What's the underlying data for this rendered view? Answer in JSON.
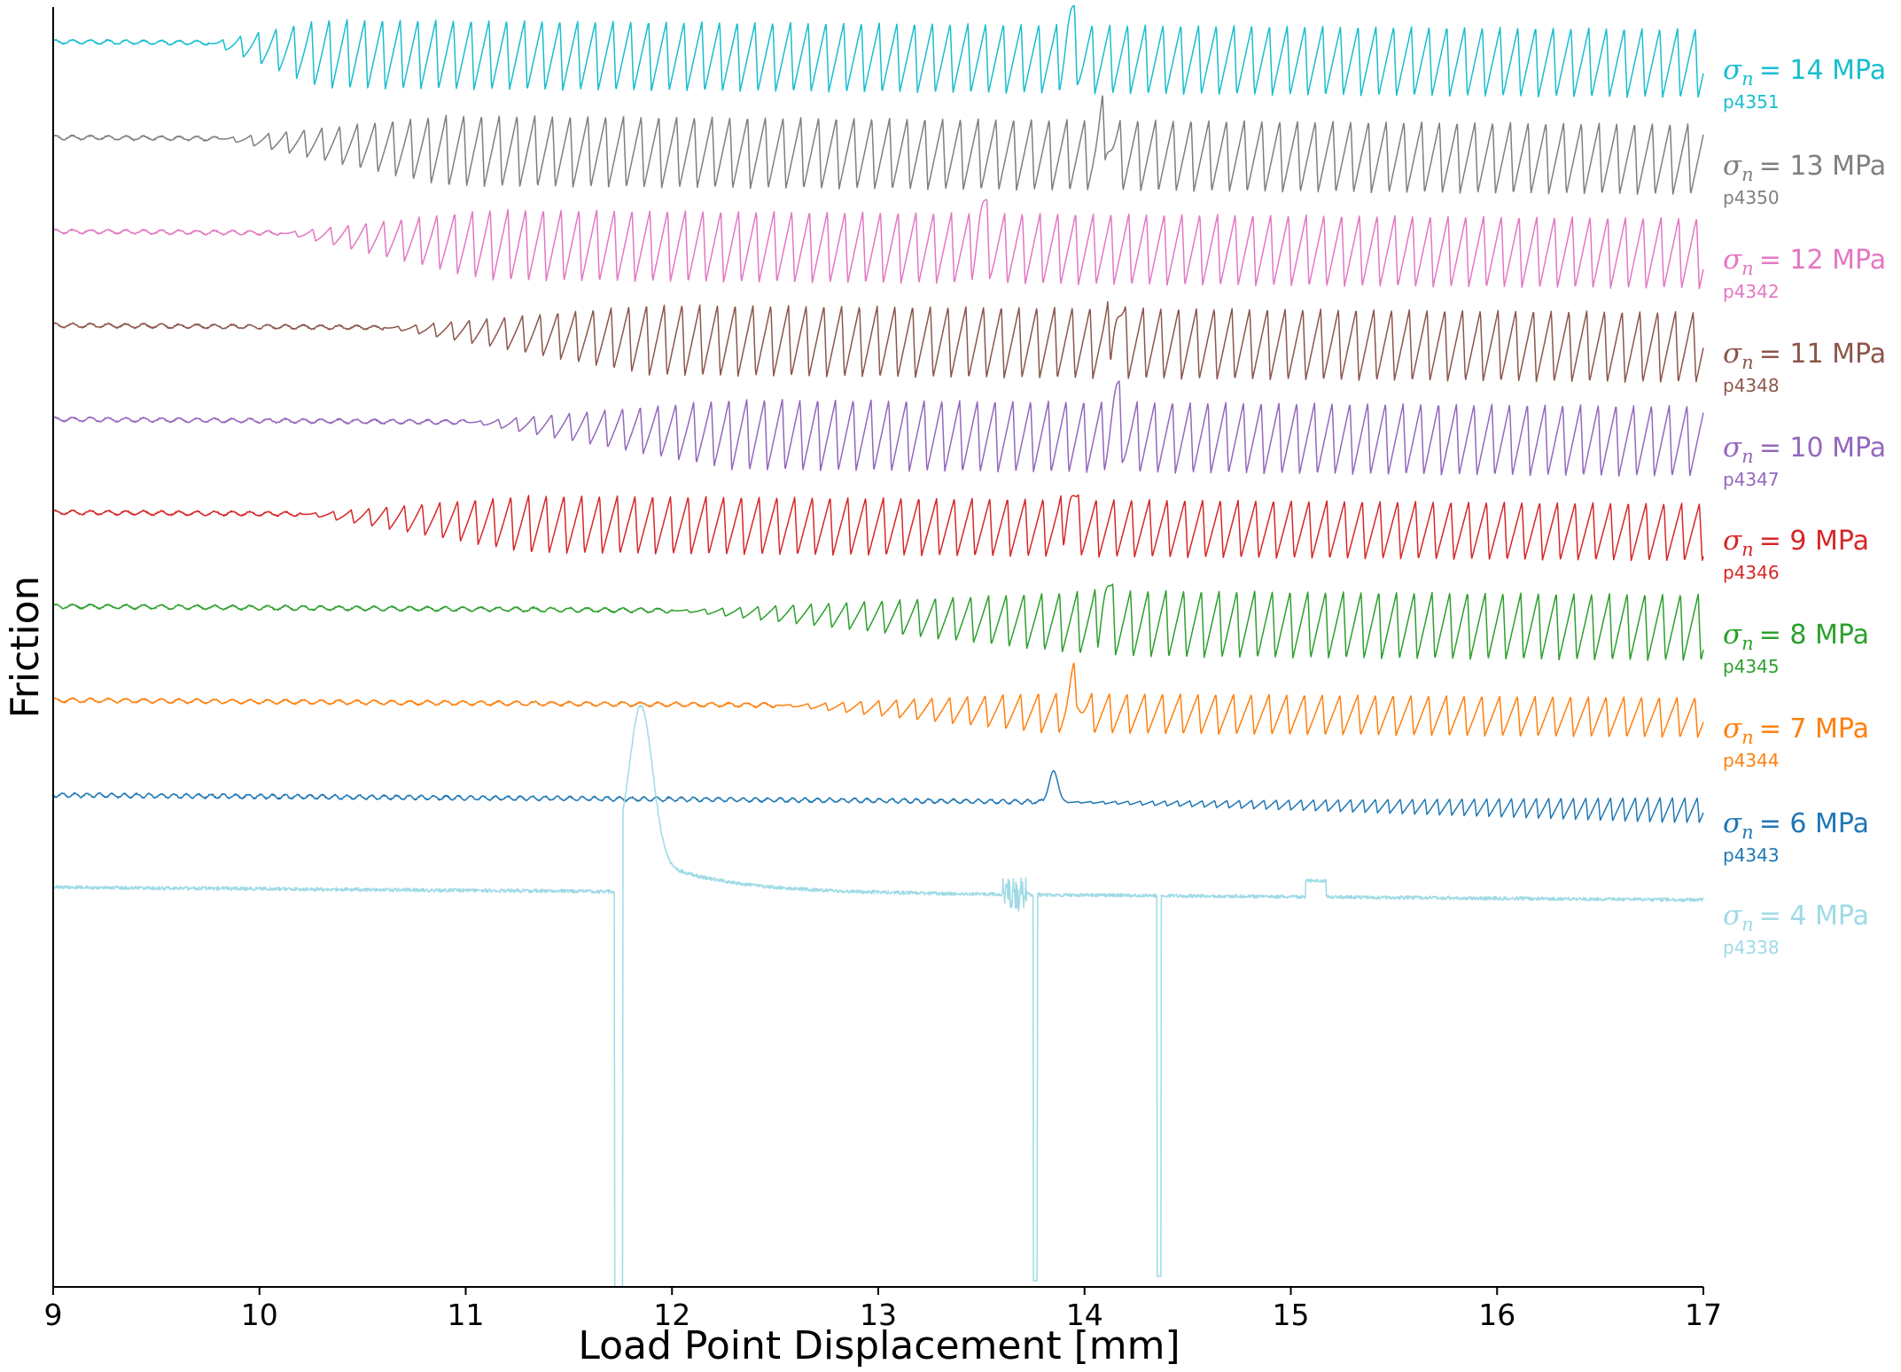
{
  "chart_data": {
    "type": "line",
    "xlabel": "Load Point Displacement [mm]",
    "ylabel": "Friction",
    "xlim": [
      9,
      17
    ],
    "xticks": [
      9,
      10,
      11,
      12,
      13,
      14,
      15,
      16,
      17
    ],
    "y_ticks_shown": false,
    "grid": false,
    "legend": "inline-right",
    "series": [
      {
        "id": "p4351",
        "stress_label": "= 14 MPa",
        "color": "#17becf",
        "baseline": 47,
        "onset": 9.75,
        "growth_end": 10.3,
        "amp_max": 78,
        "period": 0.086,
        "dip_at": 13.93
      },
      {
        "id": "p4350",
        "stress_label": "= 13 MPa",
        "color": "#7f7f7f",
        "baseline": 155,
        "onset": 9.8,
        "growth_end": 10.9,
        "amp_max": 80,
        "period": 0.086,
        "dip_at": 14.1
      },
      {
        "id": "p4342",
        "stress_label": "= 12 MPa",
        "color": "#e377c2",
        "baseline": 261,
        "onset": 10.1,
        "growth_end": 11.1,
        "amp_max": 80,
        "period": 0.086,
        "dip_at": 13.5
      },
      {
        "id": "p4348",
        "stress_label": "= 11 MPa",
        "color": "#8c564b",
        "baseline": 367,
        "onset": 10.6,
        "growth_end": 11.9,
        "amp_max": 80,
        "period": 0.086,
        "dip_at": 14.15
      },
      {
        "id": "p4347",
        "stress_label": "= 10 MPa",
        "color": "#9467bd",
        "baseline": 473,
        "onset": 11.0,
        "growth_end": 12.3,
        "amp_max": 80,
        "period": 0.086,
        "dip_at": 14.15
      },
      {
        "id": "p4346",
        "stress_label": "= 9 MPa",
        "color": "#d62728",
        "baseline": 578,
        "onset": 10.2,
        "growth_end": 11.3,
        "amp_max": 65,
        "period": 0.086,
        "dip_at": 13.93
      },
      {
        "id": "p4345",
        "stress_label": "= 8 MPa",
        "color": "#2ca02c",
        "baseline": 684,
        "onset": 12.0,
        "growth_end": 14.1,
        "amp_max": 75,
        "period": 0.086,
        "dip_at": 14.1
      },
      {
        "id": "p4344",
        "stress_label": "= 7 MPa",
        "color": "#ff7f0e",
        "baseline": 790,
        "onset": 12.5,
        "growth_end": 13.8,
        "amp_max": 45,
        "period": 0.086,
        "dip_at": 13.95
      },
      {
        "id": "p4343",
        "stress_label": "= 6 MPa",
        "color": "#1f77b4",
        "baseline": 897,
        "onset": 13.8,
        "growth_end": 16.8,
        "amp_max": 28,
        "period": 0.06,
        "dip_at": 13.85
      },
      {
        "id": "p4338",
        "stress_label": "= 4 MPa",
        "color": "#9edae5",
        "baseline": 1001,
        "onset": 99,
        "growth_end": 99,
        "amp_max": 0,
        "period": 0.06,
        "dip_at": 11.85
      }
    ]
  }
}
